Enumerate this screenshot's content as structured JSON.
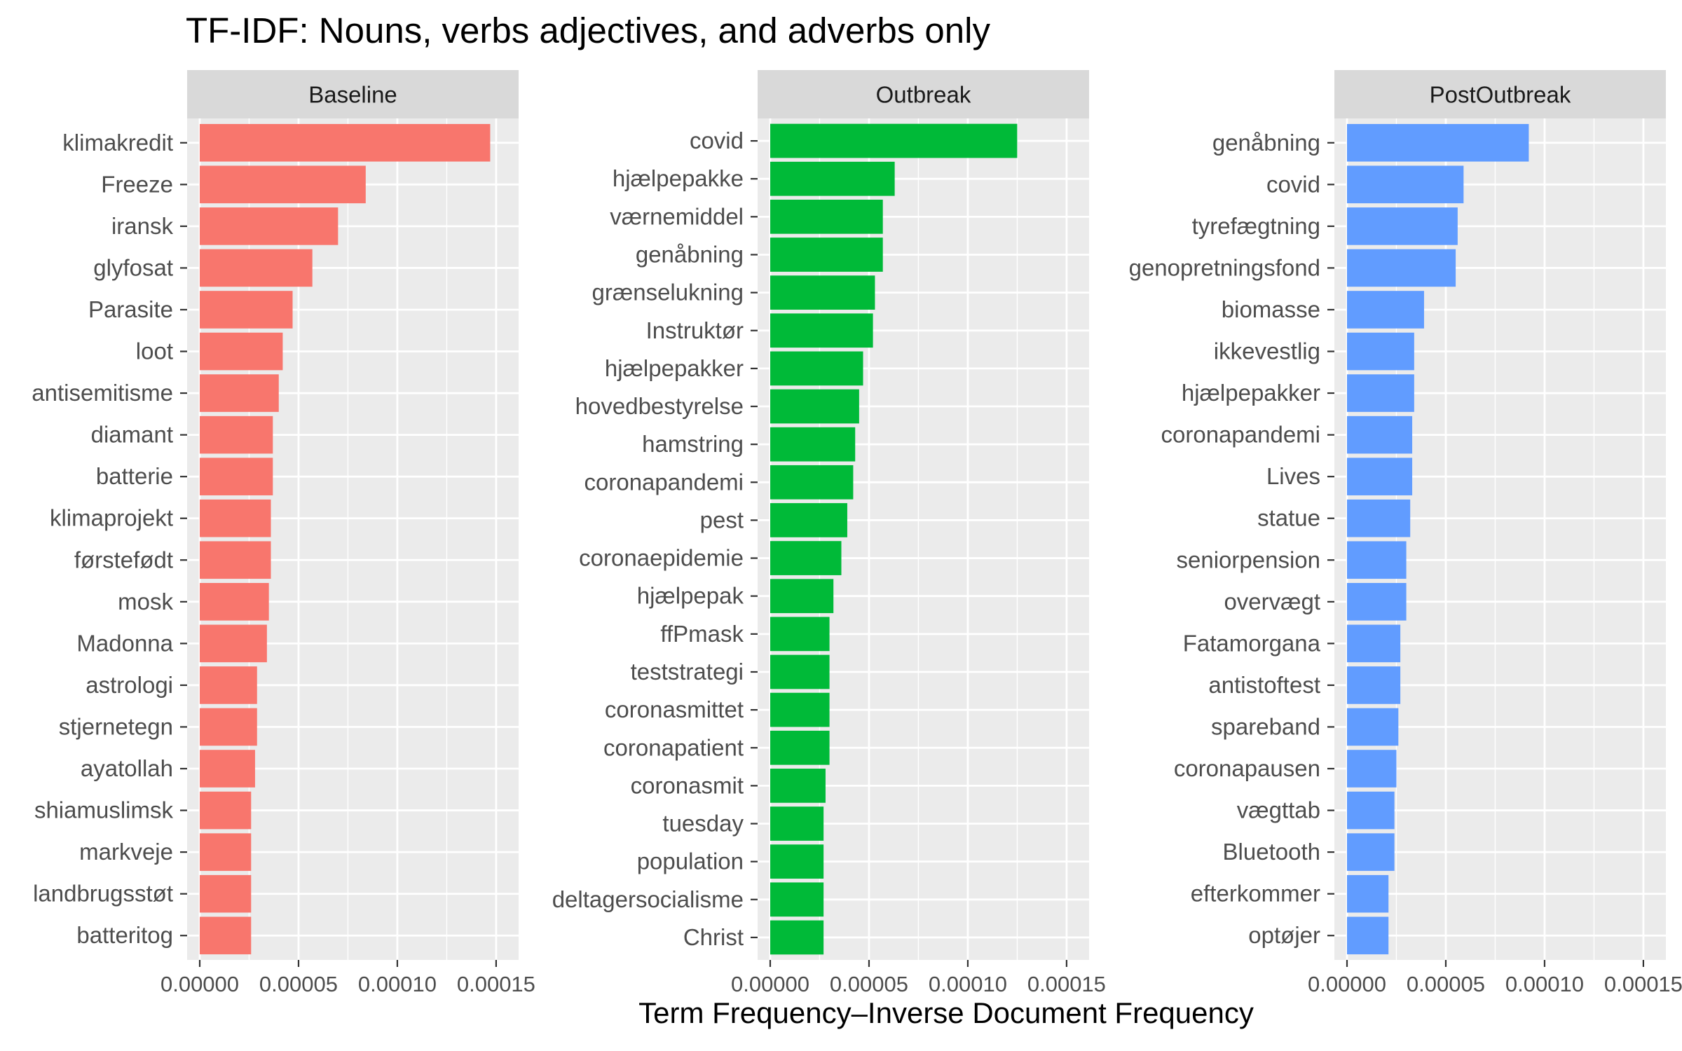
{
  "chart_data": {
    "type": "bar",
    "orientation": "horizontal",
    "title": "TF-IDF: Nouns, verbs adjectives, and adverbs only",
    "xlabel": "Term Frequency–Inverse Document Frequency",
    "ylabel": "",
    "xlim": [
      0,
      0.000155
    ],
    "x_ticks": [
      "0.00000",
      "0.00005",
      "0.00010",
      "0.00015"
    ],
    "x_tick_values": [
      0,
      5e-05,
      0.0001,
      0.00015
    ],
    "grid": true,
    "legend": "none",
    "panel_background": "#ebebeb",
    "strip_background": "#d9d9d9",
    "facets": [
      {
        "name": "Baseline",
        "color": "#f8766d",
        "terms": [
          "klimakredit",
          "Freeze",
          "iransk",
          "glyfosat",
          "Parasite",
          "loot",
          "antisemitisme",
          "diamant",
          "batterie",
          "klimaprojekt",
          "førstefødt",
          "mosk",
          "Madonna",
          "astrologi",
          "stjernetegn",
          "ayatollah",
          "shiamuslimsk",
          "markveje",
          "landbrugsstøt",
          "batteritog"
        ],
        "values": [
          0.000147,
          8.4e-05,
          7e-05,
          5.7e-05,
          4.7e-05,
          4.2e-05,
          4e-05,
          3.7e-05,
          3.7e-05,
          3.6e-05,
          3.6e-05,
          3.5e-05,
          3.4e-05,
          2.9e-05,
          2.9e-05,
          2.8e-05,
          2.6e-05,
          2.6e-05,
          2.6e-05,
          2.6e-05
        ]
      },
      {
        "name": "Outbreak",
        "color": "#00ba38",
        "terms": [
          "covid",
          "hjælpepakke",
          "værnemiddel",
          "genåbning",
          "grænselukning",
          "Instruktør",
          "hjælpepakker",
          "hovedbestyrelse",
          "hamstring",
          "coronapandemi",
          "pest",
          "coronaepidemie",
          "hjælpepak",
          "ffPmask",
          "teststrategi",
          "coronasmittet",
          "coronapatient",
          "coronasmit",
          "tuesday",
          "population",
          "deltagersocialisme",
          "Christ"
        ],
        "values": [
          0.000125,
          6.3e-05,
          5.7e-05,
          5.7e-05,
          5.3e-05,
          5.2e-05,
          4.7e-05,
          4.5e-05,
          4.3e-05,
          4.2e-05,
          3.9e-05,
          3.6e-05,
          3.2e-05,
          3e-05,
          3e-05,
          3e-05,
          3e-05,
          2.8e-05,
          2.7e-05,
          2.7e-05,
          2.7e-05,
          2.7e-05
        ]
      },
      {
        "name": "PostOutbreak",
        "color": "#619cff",
        "terms": [
          "genåbning",
          "covid",
          "tyrefægtning",
          "genopretningsfond",
          "biomasse",
          "ikkevestlig",
          "hjælpepakker",
          "coronapandemi",
          "Lives",
          "statue",
          "seniorpension",
          "overvægt",
          "Fatamorgana",
          "antistoftest",
          "spareband",
          "coronapausen",
          "vægttab",
          "Bluetooth",
          "efterkommer",
          "optøjer"
        ],
        "values": [
          9.2e-05,
          5.9e-05,
          5.6e-05,
          5.5e-05,
          3.9e-05,
          3.4e-05,
          3.4e-05,
          3.3e-05,
          3.3e-05,
          3.2e-05,
          3e-05,
          3e-05,
          2.7e-05,
          2.7e-05,
          2.6e-05,
          2.5e-05,
          2.4e-05,
          2.4e-05,
          2.1e-05,
          2.1e-05
        ]
      }
    ]
  }
}
